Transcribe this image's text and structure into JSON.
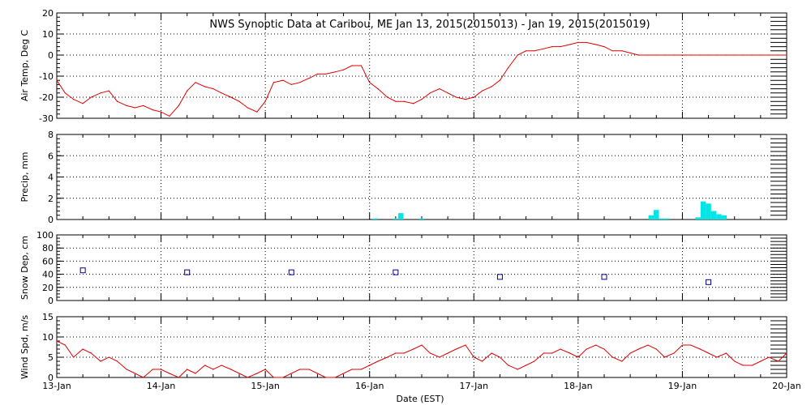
{
  "chart_data": {
    "title": "NWS Synoptic Data at Caribou, ME   Jan 13, 2015(2015013) - Jan 19, 2015(2015019)",
    "xlabel": "Date (EST)",
    "x_tick_labels": [
      "13-Jan",
      "14-Jan",
      "15-Jan",
      "16-Jan",
      "17-Jan",
      "18-Jan",
      "19-Jan",
      "20-Jan"
    ],
    "x_unit": "days since 13-Jan 00:00 EST",
    "xlim": [
      0,
      7
    ],
    "grid": true,
    "colors": {
      "air_temp": "#e00000",
      "precip": "#00e5e5",
      "snow_depth": "#00008b",
      "wind": "#e00000",
      "grid": "#000000"
    },
    "panels": [
      {
        "key": "air_temp",
        "type": "line",
        "ylabel": "Air Temp, Deg C",
        "ylim": [
          -30,
          20
        ],
        "yticks": [
          -30,
          -20,
          -10,
          0,
          10,
          20
        ],
        "x": [
          0.0,
          0.08,
          0.16,
          0.25,
          0.33,
          0.42,
          0.5,
          0.58,
          0.67,
          0.75,
          0.83,
          0.92,
          1.0,
          1.08,
          1.17,
          1.25,
          1.33,
          1.42,
          1.5,
          1.58,
          1.67,
          1.75,
          1.83,
          1.92,
          2.0,
          2.08,
          2.17,
          2.25,
          2.33,
          2.42,
          2.5,
          2.58,
          2.67,
          2.75,
          2.83,
          2.92,
          3.0,
          3.08,
          3.17,
          3.25,
          3.33,
          3.42,
          3.5,
          3.58,
          3.67,
          3.75,
          3.83,
          3.92,
          4.0,
          4.08,
          4.17,
          4.25,
          4.33,
          4.42,
          4.5,
          4.58,
          4.67,
          4.75,
          4.83,
          4.92,
          5.0,
          5.08,
          5.17,
          5.25,
          5.33,
          5.42,
          5.5,
          5.58,
          5.67,
          5.75,
          5.83,
          5.92,
          6.0,
          6.08,
          6.17,
          6.25,
          6.33,
          6.42,
          6.5,
          6.58,
          6.67,
          6.75,
          6.83,
          6.92,
          7.0
        ],
        "values": [
          -12,
          -18,
          -21,
          -23,
          -20,
          -18,
          -17,
          -22,
          -24,
          -25,
          -24,
          -26,
          -27,
          -29,
          -24,
          -17,
          -13,
          -15,
          -16,
          -18,
          -20,
          -22,
          -25,
          -27,
          -22,
          -13,
          -12,
          -14,
          -13,
          -11,
          -9,
          -9,
          -8,
          -7,
          -5,
          -5,
          -13,
          -16,
          -20,
          -22,
          -22,
          -23,
          -21,
          -18,
          -16,
          -18,
          -20,
          -21,
          -20,
          -17,
          -15,
          -12,
          -6,
          0,
          2,
          2,
          3,
          4,
          4,
          5,
          6,
          6,
          5,
          4,
          2,
          2,
          1,
          0,
          0,
          0,
          0,
          0,
          0,
          0,
          0,
          0,
          0,
          0,
          0,
          0,
          0,
          0,
          0,
          0,
          0
        ]
      },
      {
        "key": "precip",
        "type": "bar",
        "ylabel": "Precip, mm",
        "ylim": [
          0,
          8
        ],
        "yticks": [
          0,
          2,
          4,
          6,
          8
        ],
        "bar_width": 0.05,
        "bars": [
          {
            "x": 3.05,
            "value": 0.1
          },
          {
            "x": 3.25,
            "value": 0.1
          },
          {
            "x": 3.3,
            "value": 0.6
          },
          {
            "x": 3.5,
            "value": 0.1
          },
          {
            "x": 5.7,
            "value": 0.4
          },
          {
            "x": 5.75,
            "value": 0.9
          },
          {
            "x": 5.8,
            "value": 0.1
          },
          {
            "x": 5.85,
            "value": 0.1
          },
          {
            "x": 6.15,
            "value": 0.2
          },
          {
            "x": 6.2,
            "value": 1.7
          },
          {
            "x": 6.25,
            "value": 1.5
          },
          {
            "x": 6.3,
            "value": 0.8
          },
          {
            "x": 6.35,
            "value": 0.5
          },
          {
            "x": 6.4,
            "value": 0.4
          }
        ]
      },
      {
        "key": "snow_depth",
        "type": "scatter",
        "ylabel": "Snow Dep, cm",
        "ylim": [
          0,
          100
        ],
        "yticks": [
          0,
          20,
          40,
          60,
          80,
          100
        ],
        "x": [
          0.25,
          1.25,
          2.25,
          3.25,
          4.25,
          5.25,
          6.25
        ],
        "values": [
          46,
          43,
          43,
          43,
          36,
          36,
          28
        ]
      },
      {
        "key": "wind",
        "type": "line",
        "ylabel": "Wind Spd, m/s",
        "ylim": [
          0,
          15
        ],
        "yticks": [
          0,
          5,
          10,
          15
        ],
        "x": [
          0.0,
          0.08,
          0.16,
          0.25,
          0.33,
          0.42,
          0.5,
          0.58,
          0.67,
          0.75,
          0.83,
          0.92,
          1.0,
          1.08,
          1.17,
          1.25,
          1.33,
          1.42,
          1.5,
          1.58,
          1.67,
          1.75,
          1.83,
          1.92,
          2.0,
          2.08,
          2.17,
          2.25,
          2.33,
          2.42,
          2.5,
          2.58,
          2.67,
          2.75,
          2.83,
          2.92,
          3.0,
          3.08,
          3.17,
          3.25,
          3.33,
          3.42,
          3.5,
          3.58,
          3.67,
          3.75,
          3.83,
          3.92,
          4.0,
          4.08,
          4.17,
          4.25,
          4.33,
          4.42,
          4.5,
          4.58,
          4.67,
          4.75,
          4.83,
          4.92,
          5.0,
          5.08,
          5.17,
          5.25,
          5.33,
          5.42,
          5.5,
          5.58,
          5.67,
          5.75,
          5.83,
          5.92,
          6.0,
          6.08,
          6.17,
          6.25,
          6.33,
          6.42,
          6.5,
          6.58,
          6.67,
          6.75,
          6.83,
          6.92,
          7.0
        ],
        "values": [
          9,
          8,
          5,
          7,
          6,
          4,
          5,
          4,
          2,
          1,
          0,
          2,
          2,
          1,
          0,
          2,
          1,
          3,
          2,
          3,
          2,
          1,
          0,
          1,
          2,
          0,
          0,
          1,
          2,
          2,
          1,
          0,
          0,
          1,
          2,
          2,
          3,
          4,
          5,
          6,
          6,
          7,
          8,
          6,
          5,
          6,
          7,
          8,
          5,
          4,
          6,
          5,
          3,
          2,
          3,
          4,
          6,
          6,
          7,
          6,
          5,
          7,
          8,
          7,
          5,
          4,
          6,
          7,
          8,
          7,
          5,
          6,
          8,
          8,
          7,
          6,
          5,
          6,
          4,
          3,
          3,
          4,
          5,
          4,
          6
        ]
      }
    ]
  }
}
